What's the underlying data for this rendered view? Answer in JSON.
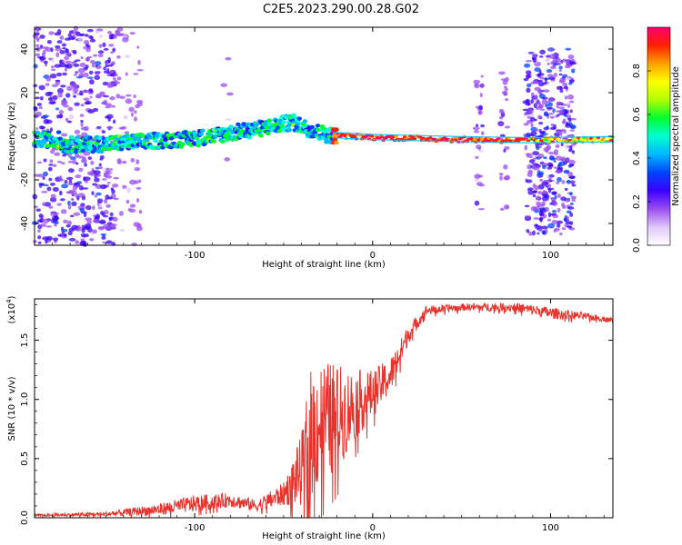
{
  "figure": {
    "title": "C2E5.2023.290.00.28.G02"
  },
  "chart_data": [
    {
      "type": "heatmap",
      "xlabel": "Height of straight line (km)",
      "ylabel": "Frequency (Hz)",
      "xlim": [
        -190,
        135
      ],
      "ylim": [
        -50,
        50
      ],
      "xticks": [
        -100,
        0,
        100
      ],
      "yticks": [
        -40,
        -20,
        0,
        20,
        40
      ],
      "colorbar": {
        "label": "Normalized spectral amplitude",
        "range": [
          0.0,
          1.0
        ],
        "ticks": [
          "0.0",
          "0.2",
          "0.4",
          "0.6",
          "0.8"
        ],
        "colors": [
          "#ffffff",
          "#e0c8f8",
          "#9a4ef0",
          "#3b00ff",
          "#0044ff",
          "#00b8ff",
          "#00ffd0",
          "#00ff30",
          "#b0ff00",
          "#ffff00",
          "#ffa000",
          "#ff2000",
          "#ff0070"
        ]
      },
      "trace": {
        "description_points": [
          {
            "x": -175,
            "f": -4.0
          },
          {
            "x": -150,
            "f": -3.5
          },
          {
            "x": -130,
            "f": -2.5
          },
          {
            "x": -100,
            "f": -1.0
          },
          {
            "x": -80,
            "f": 1.5
          },
          {
            "x": -60,
            "f": 4.0
          },
          {
            "x": -45,
            "f": 6.5
          },
          {
            "x": -35,
            "f": 3.0
          },
          {
            "x": -25,
            "f": 0.5
          },
          {
            "x": 0,
            "f": -0.5
          },
          {
            "x": 50,
            "f": -1.5
          },
          {
            "x": 90,
            "f": -2.0
          },
          {
            "x": 135,
            "f": -1.5
          }
        ]
      }
    },
    {
      "type": "line",
      "xlabel": "Height of straight line (km)",
      "ylabel": "SNR (10 * v/v)",
      "y_multiplier": "(x10",
      "y_multiplier_exp": "4",
      "y_multiplier_close": ")",
      "xlim": [
        -190,
        135
      ],
      "ylim": [
        0.0,
        1.85
      ],
      "xticks": [
        -100,
        0,
        100
      ],
      "yticks": [
        "0.0",
        "0.5",
        "1.0",
        "1.5"
      ],
      "yticks_values": [
        0.0,
        0.5,
        1.0,
        1.5
      ],
      "color": "#e8322b",
      "envelope": [
        {
          "x": -190,
          "y": 0.02,
          "spread": 0.01
        },
        {
          "x": -150,
          "y": 0.03,
          "spread": 0.02
        },
        {
          "x": -120,
          "y": 0.07,
          "spread": 0.05
        },
        {
          "x": -100,
          "y": 0.12,
          "spread": 0.07
        },
        {
          "x": -80,
          "y": 0.15,
          "spread": 0.06
        },
        {
          "x": -65,
          "y": 0.1,
          "spread": 0.05
        },
        {
          "x": -50,
          "y": 0.2,
          "spread": 0.1
        },
        {
          "x": -40,
          "y": 0.4,
          "spread": 0.3
        },
        {
          "x": -35,
          "y": 0.7,
          "spread": 0.55
        },
        {
          "x": -30,
          "y": 0.8,
          "spread": 0.55
        },
        {
          "x": -20,
          "y": 0.85,
          "spread": 0.45
        },
        {
          "x": -10,
          "y": 0.95,
          "spread": 0.3
        },
        {
          "x": 0,
          "y": 1.05,
          "spread": 0.2
        },
        {
          "x": 10,
          "y": 1.2,
          "spread": 0.15
        },
        {
          "x": 20,
          "y": 1.55,
          "spread": 0.08
        },
        {
          "x": 30,
          "y": 1.75,
          "spread": 0.04
        },
        {
          "x": 50,
          "y": 1.78,
          "spread": 0.03
        },
        {
          "x": 80,
          "y": 1.78,
          "spread": 0.04
        },
        {
          "x": 100,
          "y": 1.73,
          "spread": 0.05
        },
        {
          "x": 120,
          "y": 1.7,
          "spread": 0.03
        },
        {
          "x": 135,
          "y": 1.67,
          "spread": 0.02
        }
      ]
    }
  ]
}
